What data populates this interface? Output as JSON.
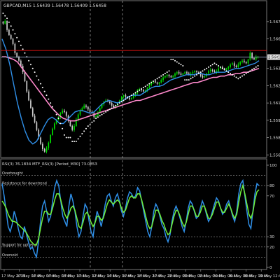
{
  "chart_data": [
    {
      "type": "candlestick",
      "title": "GBPCAD,M15 1.56439 1.56478 1.56409 1.56458",
      "y_ticks": [
        "1.56735",
        "1.56600",
        "1.56458",
        "1.56370",
        "1.56235",
        "1.56100",
        "1.55965",
        "1.55830",
        "1.55695"
      ],
      "ylim": [
        1.5568,
        1.5686
      ],
      "resistance_level": 1.5651,
      "current_price_label": "1.56458",
      "current_price": 1.56458,
      "colors": {
        "bull": "#00dd00",
        "bear": "#cfcfcf",
        "ma_pink": "#ff88cc",
        "ma_blue": "#2f8fe8",
        "psar": "#ffffff",
        "resistance": "#dd1111",
        "price_line": "#99aacc"
      },
      "closes": [
        1.5672,
        1.5674,
        1.5667,
        1.5663,
        1.566,
        1.5656,
        1.5649,
        1.5646,
        1.5643,
        1.5639,
        1.5634,
        1.5627,
        1.5619,
        1.5612,
        1.5606,
        1.56,
        1.5595,
        1.5589,
        1.5583,
        1.5578,
        1.5574,
        1.5572,
        1.5575,
        1.5579,
        1.5585,
        1.559,
        1.5594,
        1.5597,
        1.5599,
        1.5602,
        1.5604,
        1.5603,
        1.56,
        1.5596,
        1.5592,
        1.5589,
        1.5592,
        1.5597,
        1.5601,
        1.5604,
        1.5606,
        1.5608,
        1.5607,
        1.5605,
        1.5603,
        1.5602,
        1.5599,
        1.56,
        1.5603,
        1.5606,
        1.5609,
        1.5611,
        1.5612,
        1.5611,
        1.561,
        1.5608,
        1.5607,
        1.5608,
        1.561,
        1.5612,
        1.5615,
        1.5616,
        1.5615,
        1.5614,
        1.5613,
        1.5614,
        1.5616,
        1.5618,
        1.562,
        1.5621,
        1.562,
        1.5619,
        1.562,
        1.5622,
        1.5624,
        1.5626,
        1.5627,
        1.5626,
        1.5625,
        1.5626,
        1.5628,
        1.563,
        1.5631,
        1.5632,
        1.5631,
        1.563,
        1.5631,
        1.5633,
        1.5634,
        1.5633,
        1.5632,
        1.5633,
        1.5634,
        1.5633,
        1.5632,
        1.5633,
        1.5634,
        1.5635,
        1.5634,
        1.5633,
        1.5631,
        1.563,
        1.5631,
        1.5633,
        1.5635,
        1.5636,
        1.5635,
        1.5634,
        1.5635,
        1.5637,
        1.5638,
        1.5637,
        1.5636,
        1.5637,
        1.5638,
        1.564,
        1.5641,
        1.5639,
        1.5638,
        1.564,
        1.5642,
        1.5643,
        1.5642,
        1.5641,
        1.5644,
        1.5649,
        1.5645,
        1.5644,
        1.5646,
        1.5646
      ],
      "ma_pink": [
        1.5646,
        1.5646,
        1.5645,
        1.5644,
        1.5642,
        1.5638,
        1.5634,
        1.563,
        1.5626,
        1.5622,
        1.5618,
        1.5614,
        1.561,
        1.5606,
        1.5603,
        1.56,
        1.5598,
        1.5597,
        1.5596,
        1.5596,
        1.5597,
        1.5598,
        1.5599,
        1.56,
        1.5601,
        1.5602,
        1.5603,
        1.5604,
        1.5605,
        1.5606,
        1.5607,
        1.5608,
        1.5609,
        1.561,
        1.5611,
        1.5612,
        1.5612,
        1.5613,
        1.5614,
        1.5615,
        1.5616,
        1.5617,
        1.5618,
        1.5619,
        1.562,
        1.5621,
        1.5622,
        1.5623,
        1.5624,
        1.5625,
        1.5626,
        1.5626,
        1.5627,
        1.5628,
        1.5629,
        1.563,
        1.563,
        1.5631,
        1.5631,
        1.5632,
        1.5632,
        1.5633,
        1.5633,
        1.5634,
        1.5634,
        1.5635,
        1.5636,
        1.5637
      ],
      "ma_blue": [
        1.566,
        1.5652,
        1.564,
        1.5625,
        1.561,
        1.5598,
        1.5588,
        1.5581,
        1.5578,
        1.558,
        1.5586,
        1.5592,
        1.5597,
        1.5599,
        1.5597,
        1.5594,
        1.5594,
        1.5597,
        1.56,
        1.5603,
        1.5604,
        1.5604,
        1.5603,
        1.5602,
        1.5603,
        1.5606,
        1.5609,
        1.5611,
        1.5612,
        1.5611,
        1.561,
        1.5611,
        1.5613,
        1.5615,
        1.5616,
        1.5616,
        1.5616,
        1.5618,
        1.562,
        1.5622,
        1.5623,
        1.5623,
        1.5624,
        1.5626,
        1.5628,
        1.5629,
        1.563,
        1.5631,
        1.5632,
        1.5632,
        1.5632,
        1.5633,
        1.5633,
        1.5632,
        1.5632,
        1.5633,
        1.5634,
        1.5634,
        1.5634,
        1.5635,
        1.5636,
        1.5637,
        1.5637,
        1.5638,
        1.5639,
        1.564,
        1.5641,
        1.5643
      ],
      "psar": [
        1.568,
        1.5678,
        1.5676,
        1.5673,
        1.567,
        1.5667,
        1.5664,
        1.5661,
        1.5658,
        1.5655,
        1.5652,
        1.5649,
        1.5646,
        1.5643,
        1.564,
        1.5637,
        1.5634,
        1.5631,
        1.5628,
        1.5625,
        1.5622,
        1.5619,
        1.5616,
        1.5613,
        1.561,
        1.5607,
        1.5604,
        1.5601,
        1.5598,
        1.5594,
        1.559,
        1.5585,
        1.5583,
        1.5583,
        1.5583,
        1.558,
        1.558,
        1.558,
        1.5582,
        1.5584,
        1.5586,
        1.5588,
        1.559,
        1.5592,
        1.5593,
        1.5595,
        1.5596,
        1.5598,
        1.5599,
        1.56,
        1.5601,
        1.5602,
        1.5603,
        1.5604,
        1.5605,
        1.5606,
        1.5607,
        1.5608,
        1.5609,
        1.561,
        1.5611,
        1.5612,
        1.5613,
        1.5614,
        1.5615,
        1.5616,
        1.5617,
        1.5618,
        1.5619,
        1.562,
        1.5621,
        1.5622,
        1.5623,
        1.5624,
        1.5625,
        1.5626,
        1.5627,
        1.5628,
        1.5629,
        1.563,
        1.5631,
        1.5632,
        1.5633,
        1.5634,
        1.5635,
        1.5644,
        1.5644,
        1.5643,
        1.5642,
        1.5641,
        1.564,
        1.5639,
        1.5628,
        1.5628,
        1.5628,
        1.5629,
        1.563,
        1.5631,
        1.5632,
        1.5633,
        1.5634,
        1.5635,
        1.5636,
        1.5637,
        1.5638,
        1.5639,
        1.564,
        1.5641,
        1.564,
        1.5639,
        1.5638,
        1.5637,
        1.5636,
        1.5635,
        1.5634,
        1.5633,
        1.5632,
        1.5631,
        1.563,
        1.5629,
        1.563,
        1.5631,
        1.5632,
        1.5633,
        1.5634,
        1.5635,
        1.5636,
        1.5637,
        1.5638,
        1.5639
      ]
    },
    {
      "type": "line",
      "title": "RSI(3) 76.1834  MTF_RSI(3) [Period_M30] 73.0853",
      "ylim": [
        0,
        100
      ],
      "y_ticks": [
        "100",
        "80",
        "70",
        "30",
        "20",
        "0"
      ],
      "levels": [
        {
          "value": 90,
          "label": "Overbought"
        },
        {
          "value": 80,
          "label": "Resistance for downtrend"
        },
        {
          "value": 30,
          "label": ""
        },
        {
          "value": 20,
          "label": "Support for uptrend"
        },
        {
          "value": 10,
          "label": "Oversold"
        }
      ],
      "x_tick_labels": [
        "17 May 2013",
        "17 May 04:45",
        "17 May 06:45",
        "17 May 08:45",
        "17 May 10:45",
        "17 May 12:45",
        "17 May 14:45",
        "17 May 16:45",
        "17 May 18:45",
        "17 May 20:45",
        "17 May 22:45",
        "20 May 00:45",
        "20 May 02:45",
        "20 May 04:45",
        "20 May 06:45",
        "20 May 08:45",
        "20 May 10:45",
        "20 May 12:45"
      ],
      "series": [
        {
          "name": "",
          "color": "#2f8fe8",
          "values": [
            82,
            70,
            55,
            40,
            35,
            42,
            55,
            48,
            38,
            30,
            28,
            40,
            33,
            25,
            18,
            20,
            14,
            10,
            25,
            45,
            60,
            65,
            55,
            45,
            50,
            65,
            78,
            85,
            80,
            65,
            50,
            45,
            40,
            60,
            72,
            65,
            55,
            40,
            30,
            35,
            50,
            62,
            58,
            45,
            35,
            30,
            45,
            55,
            48,
            40,
            50,
            62,
            70,
            72,
            65,
            60,
            68,
            72,
            65,
            55,
            50,
            58,
            68,
            74,
            72,
            68,
            70,
            78,
            75,
            65,
            55,
            45,
            35,
            30,
            40,
            55,
            62,
            58,
            50,
            42,
            38,
            30,
            25,
            32,
            45,
            55,
            60,
            55,
            48,
            40,
            35,
            45,
            58,
            65,
            62,
            55,
            48,
            50,
            58,
            65,
            60,
            52,
            45,
            48,
            55,
            62,
            68,
            65,
            58,
            52,
            55,
            62,
            65,
            58,
            50,
            45,
            55,
            72,
            82,
            85,
            70,
            55,
            42,
            38,
            55,
            72,
            82,
            80
          ]
        },
        {
          "name": "",
          "color": "#6ff03a",
          "values": [
            65,
            62,
            58,
            52,
            48,
            45,
            45,
            44,
            42,
            40,
            38,
            36,
            34,
            30,
            26,
            24,
            22,
            22,
            28,
            38,
            48,
            55,
            55,
            52,
            52,
            58,
            66,
            72,
            72,
            66,
            58,
            52,
            48,
            52,
            58,
            60,
            56,
            48,
            40,
            38,
            44,
            52,
            54,
            50,
            44,
            40,
            44,
            50,
            50,
            46,
            48,
            55,
            62,
            66,
            64,
            62,
            64,
            66,
            64,
            58,
            54,
            56,
            62,
            68,
            70,
            68,
            68,
            72,
            72,
            66,
            58,
            50,
            42,
            38,
            40,
            48,
            56,
            56,
            52,
            46,
            42,
            36,
            32,
            34,
            42,
            50,
            56,
            55,
            50,
            44,
            40,
            44,
            52,
            60,
            60,
            56,
            50,
            50,
            54,
            60,
            60,
            54,
            48,
            48,
            52,
            58,
            64,
            64,
            58,
            54,
            54,
            58,
            62,
            58,
            52,
            48,
            52,
            64,
            74,
            80,
            72,
            62,
            52,
            48,
            54,
            66,
            74,
            76
          ]
        }
      ]
    }
  ]
}
